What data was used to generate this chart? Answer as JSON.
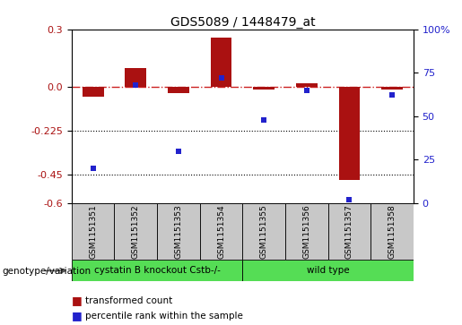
{
  "title": "GDS5089 / 1448479_at",
  "samples": [
    "GSM1151351",
    "GSM1151352",
    "GSM1151353",
    "GSM1151354",
    "GSM1151355",
    "GSM1151356",
    "GSM1151357",
    "GSM1151358"
  ],
  "red_values": [
    -0.05,
    0.1,
    -0.03,
    0.255,
    -0.01,
    0.02,
    -0.48,
    -0.01
  ],
  "blue_values": [
    20,
    68,
    30,
    72,
    48,
    65,
    2,
    62
  ],
  "ylim_left": [
    -0.6,
    0.3
  ],
  "ylim_right": [
    0,
    100
  ],
  "yticks_left": [
    0.3,
    0.0,
    -0.225,
    -0.45,
    -0.6
  ],
  "yticks_right": [
    100,
    75,
    50,
    25,
    0
  ],
  "hlines_dotted": [
    -0.225,
    -0.45
  ],
  "red_color": "#AA1111",
  "blue_color": "#2222CC",
  "dashed_line_color": "#CC2222",
  "group1_label": "cystatin B knockout Cstb-/-",
  "group2_label": "wild type",
  "group1_count": 4,
  "group2_count": 4,
  "genotype_label": "genotype/variation",
  "legend_red": "transformed count",
  "legend_blue": "percentile rank within the sample",
  "bar_width": 0.5,
  "blue_marker_size": 5,
  "green_color": "#55DD55",
  "gray_color": "#C8C8C8"
}
